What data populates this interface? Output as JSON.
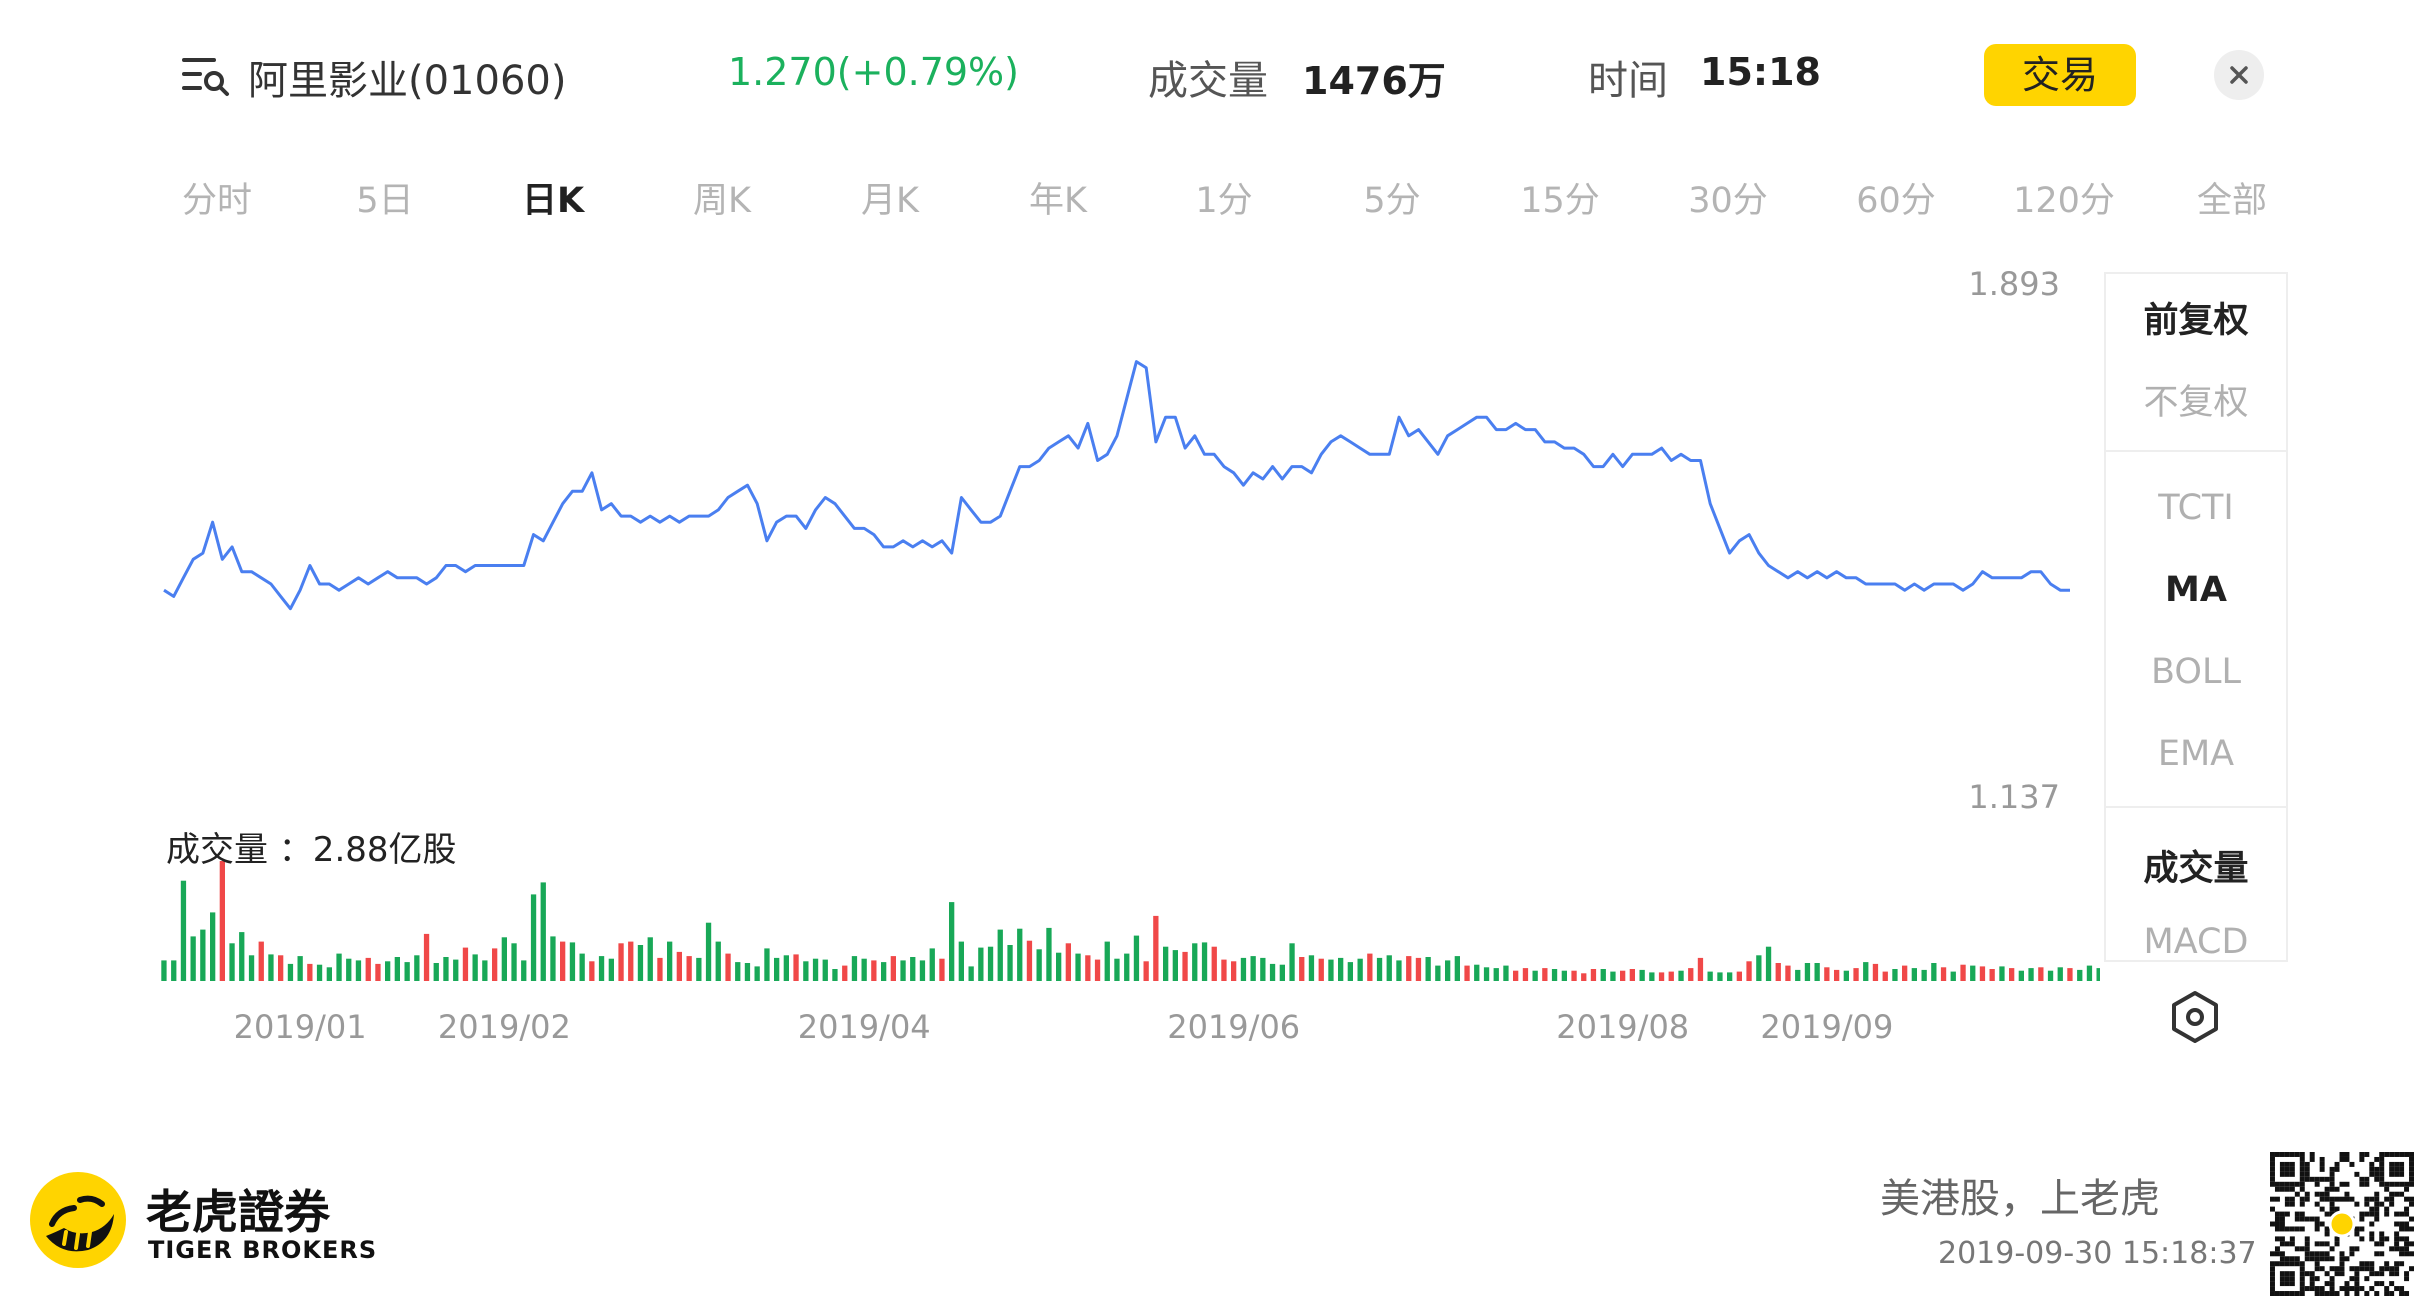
{
  "header": {
    "stock_name": "阿里影业(01060)",
    "price_change": "1.270(+0.79%)",
    "volume_label": "成交量",
    "volume_value": "1476万",
    "time_label": "时间",
    "time_value": "15:18",
    "trade_button": "交易",
    "close_icon": "close-icon",
    "menu_icon": "list-search-icon",
    "price_up_color": "#1bb15d"
  },
  "tabs": [
    {
      "label": "分时",
      "active": false
    },
    {
      "label": "5日",
      "active": false
    },
    {
      "label": "日K",
      "active": true
    },
    {
      "label": "周K",
      "active": false
    },
    {
      "label": "月K",
      "active": false
    },
    {
      "label": "年K",
      "active": false
    },
    {
      "label": "1分",
      "active": false
    },
    {
      "label": "5分",
      "active": false
    },
    {
      "label": "15分",
      "active": false
    },
    {
      "label": "30分",
      "active": false
    },
    {
      "label": "60分",
      "active": false
    },
    {
      "label": "120分",
      "active": false
    },
    {
      "label": "全部",
      "active": false
    }
  ],
  "side_panel": {
    "adjust": [
      {
        "label": "前复权",
        "active": true
      },
      {
        "label": "不复权",
        "active": false
      }
    ],
    "indicators": [
      {
        "label": "TCTI",
        "active": false
      },
      {
        "label": "MA",
        "active": true
      },
      {
        "label": "BOLL",
        "active": false
      },
      {
        "label": "EMA",
        "active": false
      }
    ],
    "sub_indicators": [
      {
        "label": "成交量",
        "active": true
      },
      {
        "label": "MACD",
        "active": false
      }
    ],
    "settings_icon": "hexagon-settings-icon"
  },
  "chart_data": {
    "type": "line",
    "series": [
      {
        "values": [
          1.42,
          1.41,
          1.44,
          1.47,
          1.48,
          1.53,
          1.47,
          1.49,
          1.45,
          1.45,
          1.44,
          1.43,
          1.41,
          1.39,
          1.42,
          1.46,
          1.43,
          1.43,
          1.42,
          1.43,
          1.44,
          1.43,
          1.44,
          1.45,
          1.44,
          1.44,
          1.44,
          1.43,
          1.44,
          1.46,
          1.46,
          1.45,
          1.46,
          1.46,
          1.46,
          1.46,
          1.46,
          1.46,
          1.51,
          1.5,
          1.53,
          1.56,
          1.58,
          1.58,
          1.61,
          1.55,
          1.56,
          1.54,
          1.54,
          1.53,
          1.54,
          1.53,
          1.54,
          1.53,
          1.54,
          1.54,
          1.54,
          1.55,
          1.57,
          1.58,
          1.59,
          1.56,
          1.5,
          1.53,
          1.54,
          1.54,
          1.52,
          1.55,
          1.57,
          1.56,
          1.54,
          1.52,
          1.52,
          1.51,
          1.49,
          1.49,
          1.5,
          1.49,
          1.5,
          1.49,
          1.5,
          1.48,
          1.57,
          1.55,
          1.53,
          1.53,
          1.54,
          1.58,
          1.62,
          1.62,
          1.63,
          1.65,
          1.66,
          1.67,
          1.65,
          1.69,
          1.63,
          1.64,
          1.67,
          1.73,
          1.79,
          1.78,
          1.66,
          1.7,
          1.7,
          1.65,
          1.67,
          1.64,
          1.64,
          1.62,
          1.61,
          1.59,
          1.61,
          1.6,
          1.62,
          1.6,
          1.62,
          1.62,
          1.61,
          1.64,
          1.66,
          1.67,
          1.66,
          1.65,
          1.64,
          1.64,
          1.64,
          1.7,
          1.67,
          1.68,
          1.66,
          1.64,
          1.67,
          1.68,
          1.69,
          1.7,
          1.7,
          1.68,
          1.68,
          1.69,
          1.68,
          1.68,
          1.66,
          1.66,
          1.65,
          1.65,
          1.64,
          1.62,
          1.62,
          1.64,
          1.62,
          1.64,
          1.64,
          1.64,
          1.65,
          1.63,
          1.64,
          1.63,
          1.63,
          1.56,
          1.52,
          1.48,
          1.5,
          1.51,
          1.48,
          1.46,
          1.45,
          1.44,
          1.45,
          1.44,
          1.45,
          1.44,
          1.45,
          1.44,
          1.44,
          1.43,
          1.43,
          1.43,
          1.43,
          1.42,
          1.43,
          1.42,
          1.43,
          1.43,
          1.43,
          1.42,
          1.43,
          1.45,
          1.44,
          1.44,
          1.44,
          1.44,
          1.45,
          1.45,
          1.43,
          1.42,
          1.42
        ]
      },
      {
        "name": "成交量",
        "values": [
          0.24,
          0.24,
          1.17,
          0.52,
          0.6,
          0.8,
          1.4,
          0.44,
          0.57,
          0.3,
          0.46,
          0.31,
          0.3,
          0.2,
          0.29,
          0.2,
          0.19,
          0.16,
          0.32,
          0.26,
          0.24,
          0.27,
          0.2,
          0.23,
          0.28,
          0.22,
          0.3,
          0.55,
          0.21,
          0.28,
          0.25,
          0.39,
          0.31,
          0.24,
          0.38,
          0.51,
          0.44,
          0.24,
          1.01,
          1.15,
          0.52,
          0.46,
          0.45,
          0.32,
          0.23,
          0.29,
          0.26,
          0.44,
          0.46,
          0.42,
          0.51,
          0.27,
          0.46,
          0.34,
          0.29,
          0.27,
          0.68,
          0.46,
          0.32,
          0.22,
          0.21,
          0.17,
          0.38,
          0.27,
          0.3,
          0.31,
          0.23,
          0.26,
          0.25,
          0.14,
          0.18,
          0.29,
          0.26,
          0.24,
          0.22,
          0.29,
          0.24,
          0.28,
          0.24,
          0.38,
          0.26,
          0.92,
          0.46,
          0.17,
          0.39,
          0.4,
          0.6,
          0.42,
          0.61,
          0.47,
          0.37,
          0.62,
          0.33,
          0.44,
          0.32,
          0.3,
          0.25,
          0.46,
          0.26,
          0.32,
          0.53,
          0.23,
          0.76,
          0.4,
          0.36,
          0.34,
          0.44,
          0.45,
          0.4,
          0.25,
          0.23,
          0.27,
          0.29,
          0.27,
          0.2,
          0.19,
          0.44,
          0.28,
          0.3,
          0.26,
          0.25,
          0.27,
          0.22,
          0.26,
          0.32,
          0.27,
          0.3,
          0.24,
          0.29,
          0.27,
          0.28,
          0.18,
          0.24,
          0.29,
          0.18,
          0.19,
          0.16,
          0.15,
          0.18,
          0.12,
          0.15,
          0.12,
          0.15,
          0.14,
          0.12,
          0.12,
          0.09,
          0.14,
          0.14,
          0.11,
          0.12,
          0.14,
          0.13,
          0.1,
          0.1,
          0.11,
          0.12,
          0.15,
          0.27,
          0.11,
          0.1,
          0.1,
          0.11,
          0.23,
          0.3,
          0.4,
          0.21,
          0.18,
          0.13,
          0.21,
          0.21,
          0.16,
          0.13,
          0.12,
          0.15,
          0.22,
          0.2,
          0.11,
          0.14,
          0.18,
          0.15,
          0.13,
          0.21,
          0.16,
          0.11,
          0.19,
          0.18,
          0.17,
          0.14,
          0.17,
          0.15,
          0.12,
          0.15,
          0.16,
          0.12,
          0.16,
          0.15,
          0.13,
          0.18,
          0.15,
          0.13,
          0.12
        ]
      }
    ],
    "up_color": "#f04848",
    "down_color": "#18a857",
    "line_color": "#4a7ff0",
    "ylim": [
      1.137,
      1.893
    ],
    "y_tick_labels": [
      "1.893",
      "1.137"
    ],
    "x_tick_labels": [
      "2019/01",
      "2019/02",
      "2019/04",
      "2019/06",
      "2019/08",
      "2019/09"
    ],
    "x_tick_index": [
      14,
      35,
      72,
      110,
      150,
      171
    ],
    "volume_label": "成交量",
    "volume_total": "2.88亿股",
    "volume_title": "成交量 ：2.88亿股",
    "volume_up": [
      0,
      0,
      0,
      0,
      0,
      0,
      1,
      0,
      0,
      0,
      1,
      0,
      1,
      0,
      0,
      1,
      0,
      0,
      0,
      0,
      0,
      1,
      1,
      0,
      0,
      0,
      0,
      1,
      0,
      0,
      0,
      1,
      0,
      0,
      1,
      0,
      0,
      0,
      0,
      0,
      0,
      1,
      0,
      0,
      1,
      0,
      0,
      1,
      1,
      0,
      0,
      1,
      0,
      1,
      1,
      0,
      0,
      0,
      1,
      0,
      0,
      0,
      0,
      0,
      0,
      1,
      0,
      0,
      0,
      0,
      1,
      0,
      0,
      1,
      0,
      1,
      0,
      0,
      0,
      0,
      1,
      0,
      0,
      0,
      0,
      0,
      0,
      0,
      0,
      1,
      0,
      0,
      0,
      1,
      0,
      1,
      1,
      0,
      0,
      0,
      0,
      1,
      1,
      0,
      0,
      1,
      0,
      0,
      1,
      1,
      1,
      0,
      0,
      0,
      0,
      0,
      0,
      1,
      0,
      1,
      0,
      0,
      0,
      0,
      1,
      0,
      0,
      0,
      1,
      1,
      0,
      0,
      0,
      0,
      1,
      0,
      0,
      0,
      0,
      1,
      1,
      0,
      1,
      0,
      0,
      1,
      1,
      1,
      0,
      0,
      1,
      1,
      0,
      0,
      1,
      1,
      0,
      1,
      1,
      0,
      0,
      0,
      1,
      1,
      0,
      0,
      1,
      1,
      0,
      0,
      0,
      1,
      1,
      0,
      1,
      0,
      1,
      1,
      0,
      1,
      0,
      0,
      0,
      1,
      0,
      1,
      0,
      1,
      1,
      0,
      1,
      0,
      0,
      1,
      0,
      0,
      1,
      0
    ]
  },
  "footer": {
    "brand_cn": "老虎證券",
    "brand_en": "TIGER BROKERS",
    "slogan": "美港股，上老虎",
    "timestamp": "2019-09-30 15:18:37",
    "logo_icon": "tiger-logo-icon",
    "qr_icon": "qr-code-icon"
  }
}
